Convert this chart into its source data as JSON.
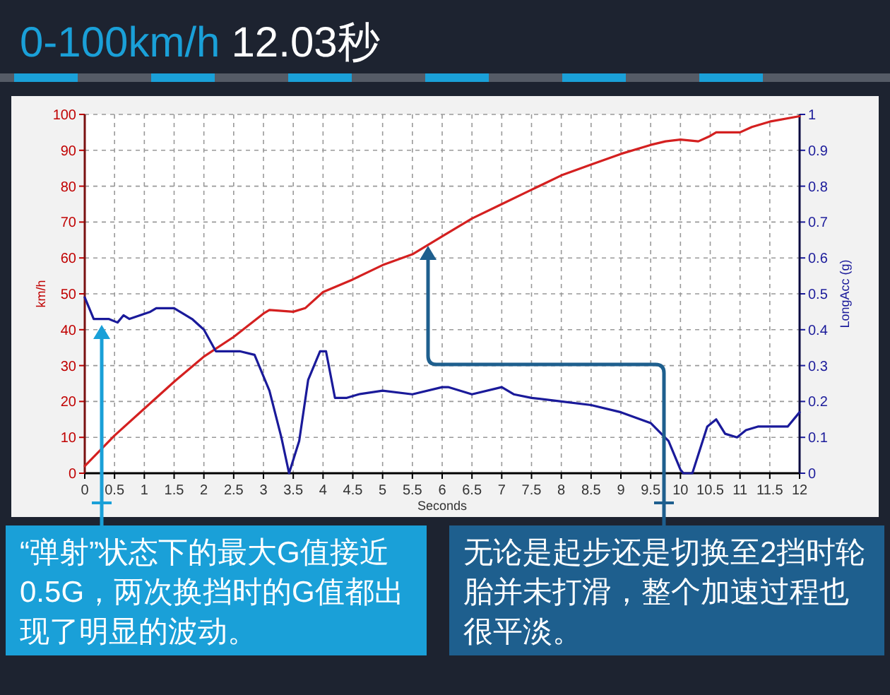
{
  "chart_data": {
    "type": "line",
    "title": "0-100km/h",
    "subtitle": "12.03秒",
    "xlabel": "Seconds",
    "ylabel": "km/h",
    "y2label": "LongAcc (g)",
    "xlim": [
      0,
      12
    ],
    "ylim": [
      0,
      100
    ],
    "y2lim": [
      0,
      1
    ],
    "xticks": [
      0,
      0.5,
      1,
      1.5,
      2,
      2.5,
      3,
      3.5,
      4,
      4.5,
      5,
      5.5,
      6,
      6.5,
      7,
      7.5,
      8,
      8.5,
      9,
      9.5,
      10,
      10.5,
      11,
      11.5,
      12
    ],
    "yticks": [
      0,
      10,
      20,
      30,
      40,
      50,
      60,
      70,
      80,
      90,
      100
    ],
    "y2ticks": [
      0,
      0.1,
      0.2,
      0.3,
      0.4,
      0.5,
      0.6,
      0.7,
      0.8,
      0.9,
      1
    ],
    "grid": true,
    "line_style": "solid",
    "marker": "none",
    "series": [
      {
        "color": "#d42020",
        "x": [
          0,
          0.5,
          1,
          1.5,
          2,
          2.5,
          3,
          3.1,
          3.5,
          3.7,
          4,
          4.5,
          5,
          5.5,
          6,
          6.5,
          7,
          7.5,
          8,
          8.5,
          9,
          9.5,
          9.75,
          10,
          10.3,
          10.5,
          10.6,
          11,
          11.2,
          11.5,
          12
        ],
        "values": [
          2,
          10.5,
          18,
          25.5,
          32.5,
          38,
          44.5,
          45.5,
          45,
          46,
          50.5,
          54,
          58,
          61,
          66,
          71,
          75,
          79,
          83,
          86,
          89,
          91.5,
          92.5,
          93,
          92.5,
          94,
          95,
          95,
          96.5,
          98,
          99.5
        ]
      },
      {
        "color": "#1a1a9a",
        "axis": "y2",
        "x": [
          0,
          0.15,
          0.4,
          0.55,
          0.65,
          0.75,
          1.1,
          1.2,
          1.5,
          1.8,
          2,
          2.2,
          2.4,
          2.6,
          2.85,
          3.1,
          3.3,
          3.43,
          3.6,
          3.75,
          3.95,
          4.05,
          4.2,
          4.4,
          4.6,
          5,
          5.5,
          6,
          6.1,
          6.5,
          7,
          7.2,
          7.5,
          8,
          8.5,
          9,
          9.5,
          9.8,
          10,
          10.05,
          10.2,
          10.45,
          10.6,
          10.75,
          10.95,
          11.1,
          11.3,
          11.5,
          11.8,
          12
        ],
        "values": [
          0.49,
          0.43,
          0.43,
          0.42,
          0.44,
          0.43,
          0.45,
          0.46,
          0.46,
          0.43,
          0.4,
          0.34,
          0.34,
          0.34,
          0.33,
          0.23,
          0.1,
          0,
          0.09,
          0.26,
          0.34,
          0.34,
          0.21,
          0.21,
          0.22,
          0.23,
          0.22,
          0.24,
          0.24,
          0.22,
          0.24,
          0.22,
          0.21,
          0.2,
          0.19,
          0.17,
          0.14,
          0.09,
          0.01,
          0,
          0,
          0.13,
          0.15,
          0.11,
          0.1,
          0.12,
          0.13,
          0.13,
          0.13,
          0.17
        ]
      }
    ],
    "annotations": [
      "“弹射”状态下的最大G值接近0.5G，两次换挡时的G值都出现了明显的波动。",
      "无论是起步还是切换至2挡时轮胎并未打滑，整个加速过程也很平淡。"
    ]
  }
}
